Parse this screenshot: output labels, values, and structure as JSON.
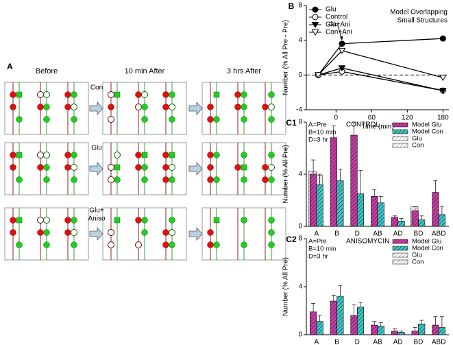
{
  "panel_a": {
    "label": "A",
    "columns": [
      "Before",
      "10 min After",
      "3 hrs After"
    ],
    "conditions": [
      [
        "Con"
      ],
      [
        "Glu"
      ],
      [
        "Glu+",
        "Aniso"
      ]
    ]
  },
  "chart_data": [
    {
      "type": "line",
      "label": "B",
      "note": [
        "Model Overlapping",
        "Small Structures"
      ],
      "arrow_label": "Glu",
      "x": [
        -30,
        10,
        180
      ],
      "xlim": [
        -50,
        190
      ],
      "xticks": [
        0,
        60,
        120,
        180
      ],
      "ylim": [
        -4,
        8
      ],
      "yticks": [
        -4,
        0,
        4,
        8
      ],
      "reference_line": 0,
      "xlabel": "Time (min)",
      "ylabel": "Number (% All Pre - Pre)",
      "legend": "upper left",
      "series": [
        {
          "name": "Glu",
          "color": "#000000",
          "marker": "circle",
          "filled": true,
          "values": [
            0,
            3.6,
            4.2
          ]
        },
        {
          "name": "Control",
          "color": "#000000",
          "marker": "circle",
          "filled": false,
          "values": [
            0,
            0.4,
            -1.8
          ]
        },
        {
          "name": "Glu+Ani",
          "color": "#000000",
          "marker": "triangle-down",
          "filled": true,
          "values": [
            0,
            0.8,
            -1.8
          ]
        },
        {
          "name": "Con+Ani",
          "color": "#000000",
          "marker": "triangle-down",
          "filled": false,
          "values": [
            0,
            2.8,
            -0.3
          ]
        }
      ]
    },
    {
      "type": "bar",
      "label": "C1",
      "title": "CONTROL",
      "note": [
        "A=Pre",
        "B=10 min",
        "D=3 hr"
      ],
      "categories": [
        "A",
        "B",
        "D",
        "AB",
        "AD",
        "BD",
        "ABD"
      ],
      "ylim": [
        0,
        8
      ],
      "yticks": [
        0,
        4,
        8
      ],
      "ylabel": "Number (% All Pre)",
      "legend": "upper right",
      "series": [
        {
          "name": "Model Glu",
          "color": "#cc3aa8",
          "values": [
            4.0,
            6.8,
            7.0,
            2.3,
            0.7,
            1.2,
            2.6
          ],
          "errors": [
            1.1,
            0.9,
            1.0,
            0.5,
            0.1,
            0.3,
            0.9
          ]
        },
        {
          "name": "Model Con",
          "color": "#3cc8c8",
          "values": [
            3.2,
            3.5,
            2.5,
            1.8,
            0.4,
            0.5,
            0.9
          ],
          "errors": [
            0.8,
            0.9,
            1.8,
            0.5,
            0.2,
            0.3,
            0.6
          ]
        },
        {
          "name": "Glu",
          "color": "#ffffff",
          "values": [
            4.2,
            null,
            null,
            null,
            null,
            1.5,
            null
          ]
        },
        {
          "name": "Con",
          "color": "#ffffff",
          "values": [
            3.9,
            null,
            null,
            null,
            null,
            null,
            null
          ]
        }
      ]
    },
    {
      "type": "bar",
      "label": "C2",
      "title": "ANISOMYCIN",
      "note": [
        "A=Pre",
        "B=10 min",
        "D=3 hr"
      ],
      "categories": [
        "A",
        "B",
        "D",
        "AB",
        "AD",
        "BD",
        "ABD"
      ],
      "ylim": [
        0,
        8
      ],
      "yticks": [
        0,
        4,
        8
      ],
      "ylabel": "Number (% All Pre)",
      "legend": "upper right",
      "series": [
        {
          "name": "Model Glu",
          "color": "#cc3aa8",
          "values": [
            1.9,
            2.8,
            1.6,
            0.8,
            0.3,
            0.3,
            0.8
          ],
          "errors": [
            0.7,
            0.5,
            0.9,
            0.3,
            0.2,
            0.3,
            0.7
          ]
        },
        {
          "name": "Model Con",
          "color": "#3cc8c8",
          "values": [
            1.1,
            3.2,
            2.3,
            0.7,
            0.2,
            0.9,
            0.6
          ],
          "errors": [
            0.5,
            0.9,
            0.4,
            0.3,
            0.1,
            0.3,
            0.9
          ]
        },
        {
          "name": "Glu",
          "color": "#ffffff",
          "values": [
            null,
            null,
            null,
            null,
            null,
            null,
            null
          ]
        },
        {
          "name": "Con",
          "color": "#ffffff",
          "values": [
            null,
            null,
            null,
            null,
            null,
            null,
            null
          ]
        }
      ]
    }
  ]
}
